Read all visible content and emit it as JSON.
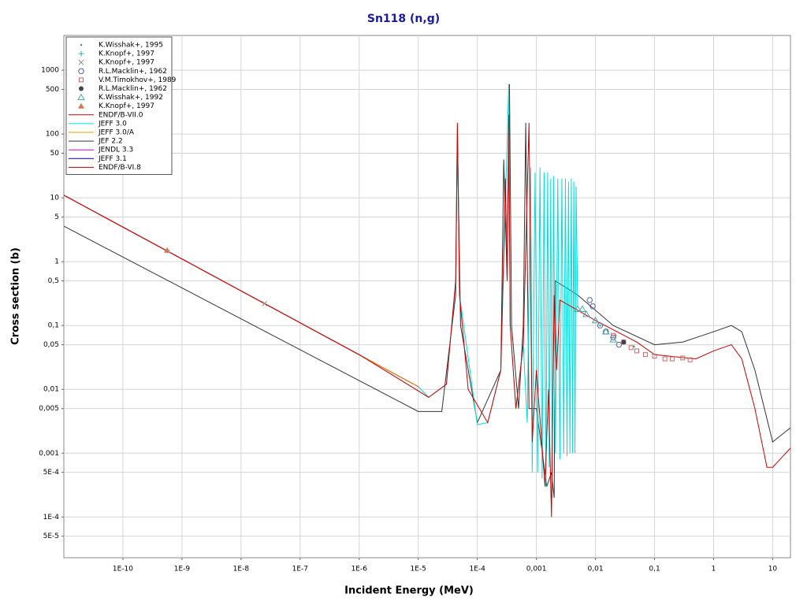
{
  "chart_data": {
    "type": "line",
    "title": "Sn118 (n,g)",
    "x_label": "Incident Energy (MeV)",
    "y_label": "Cross section (b)",
    "xscale": "log",
    "yscale": "log",
    "grid": true,
    "legend": "upper left",
    "xlim": [
      1e-11,
      20
    ],
    "ylim": [
      2.3e-05,
      3500
    ],
    "xticks": [
      {
        "value": 1e-10,
        "label": "1E-10"
      },
      {
        "value": 1e-09,
        "label": "1E-9"
      },
      {
        "value": 1e-08,
        "label": "1E-8"
      },
      {
        "value": 1e-07,
        "label": "1E-7"
      },
      {
        "value": 1e-06,
        "label": "1E-6"
      },
      {
        "value": 1e-05,
        "label": "1E-5"
      },
      {
        "value": 0.0001,
        "label": "1E-4"
      },
      {
        "value": 0.001,
        "label": "0,001"
      },
      {
        "value": 0.01,
        "label": "0,01"
      },
      {
        "value": 0.1,
        "label": "0,1"
      },
      1,
      10
    ],
    "yticks": [
      1000,
      500,
      100,
      50,
      10,
      5,
      1,
      {
        "value": 0.5,
        "label": "0,5"
      },
      {
        "value": 0.1,
        "label": "0,1"
      },
      {
        "value": 0.05,
        "label": "0,05"
      },
      {
        "value": 0.01,
        "label": "0,01"
      },
      {
        "value": 0.005,
        "label": "0,005"
      },
      {
        "value": 0.001,
        "label": "0,001"
      },
      {
        "value": 0.0005,
        "label": "5E-4"
      },
      {
        "value": 0.0001,
        "label": "1E-4"
      },
      {
        "value": 5e-05,
        "label": "5E-5"
      }
    ],
    "series": [
      {
        "name": "K.Wisshak+, 1995",
        "style": "scatter",
        "marker": "dot",
        "color": "#339988",
        "x": [
          0.012,
          0.016,
          0.022,
          0.03,
          0.045
        ],
        "values": [
          0.1,
          0.085,
          0.07,
          0.058,
          0.047
        ]
      },
      {
        "name": "K.Knopf+, 1997",
        "style": "scatter",
        "marker": "plus",
        "color": "#33aaaa",
        "x": [
          5.6e-10
        ],
        "values": [
          1.5
        ]
      },
      {
        "name": "K.Knopf+, 1997",
        "style": "scatter",
        "marker": "cross",
        "color": "#888888",
        "x": [
          2.5e-08
        ],
        "values": [
          0.22
        ]
      },
      {
        "name": "R.L.Macklin+, 1962",
        "style": "scatter",
        "marker": "hexagon",
        "color": "#5566aa",
        "x": [
          0.008,
          0.009,
          0.012,
          0.015,
          0.02,
          0.025
        ],
        "values": [
          0.25,
          0.2,
          0.1,
          0.08,
          0.065,
          0.05
        ]
      },
      {
        "name": "V.M.Timokhov+, 1989",
        "style": "scatter",
        "marker": "square",
        "color": "#cc6666",
        "x": [
          0.02,
          0.03,
          0.04,
          0.05,
          0.07,
          0.1,
          0.15,
          0.2,
          0.3,
          0.4
        ],
        "values": [
          0.07,
          0.055,
          0.045,
          0.04,
          0.035,
          0.033,
          0.03,
          0.03,
          0.031,
          0.029
        ]
      },
      {
        "name": "R.L.Macklin+, 1962",
        "style": "scatter",
        "marker": "filled-circle",
        "color": "#444444",
        "x": [
          0.03
        ],
        "values": [
          0.055
        ]
      },
      {
        "name": "K.Wisshak+, 1992",
        "style": "scatter",
        "marker": "triangle",
        "color": "#44aaaa",
        "x": [
          0.005,
          0.006,
          0.007,
          0.01,
          0.015,
          0.02
        ],
        "values": [
          0.18,
          0.18,
          0.15,
          0.12,
          0.08,
          0.06
        ]
      },
      {
        "name": "K.Knopf+, 1997",
        "style": "scatter",
        "marker": "filled-triangle",
        "color": "#d2785a",
        "x": [
          5.6e-10
        ],
        "values": [
          1.5
        ]
      },
      {
        "name": "ENDF/B-VII.0",
        "style": "line",
        "color": "#cc0000",
        "x": [
          1e-11,
          1e-06,
          1.5e-05,
          3e-05,
          4.3e-05,
          4.6e-05,
          5e-05,
          7e-05,
          0.00015,
          0.00025,
          0.0003,
          0.00032,
          0.00034,
          0.00036,
          0.00045,
          0.0006,
          0.00075,
          0.00085,
          0.001,
          0.0014,
          0.0016,
          0.0018,
          0.002,
          0.0022,
          0.0025,
          0.01,
          0.05,
          0.1,
          0.5,
          1,
          2,
          3,
          5,
          8,
          10,
          15,
          20
        ],
        "values": [
          11,
          0.035,
          0.0075,
          0.012,
          0.5,
          150,
          0.3,
          0.01,
          0.003,
          0.02,
          20,
          0.5,
          200,
          0.1,
          0.005,
          0.05,
          150,
          0.0015,
          0.02,
          0.0003,
          0.01,
          0.0001,
          0.3,
          0.02,
          0.25,
          0.12,
          0.055,
          0.035,
          0.03,
          0.04,
          0.05,
          0.03,
          0.005,
          0.0006,
          0.0006,
          0.0009,
          0.0012
        ]
      },
      {
        "name": "JEFF 3.0",
        "style": "line",
        "color": "#00dddd",
        "x": [
          1e-05,
          1.5e-05,
          3e-05,
          4.3e-05,
          4.6e-05,
          5e-05,
          0.0001,
          0.00015,
          0.00025,
          0.00034,
          0.00036,
          0.00045,
          0.0006,
          0.0007,
          0.0008,
          0.00085,
          0.00095,
          0.00105,
          0.00115,
          0.00125,
          0.00135,
          0.00145,
          0.00155,
          0.00165,
          0.00175,
          0.00185,
          0.00195,
          0.0021,
          0.0023,
          0.0025,
          0.0027,
          0.0029,
          0.0031,
          0.0033,
          0.0035,
          0.0037,
          0.0039,
          0.0041,
          0.0043,
          0.0045,
          0.0047,
          0.005
        ],
        "values": [
          0.011,
          0.0075,
          0.012,
          0.5,
          140,
          0.3,
          0.0028,
          0.003,
          0.02,
          600,
          0.1,
          0.005,
          0.05,
          0.003,
          30,
          0.0005,
          25,
          0.0005,
          30,
          0.0004,
          25,
          0.0003,
          25,
          0.0006,
          20,
          0.0002,
          22,
          0.001,
          20,
          0.0008,
          20,
          0.001,
          20,
          0.0009,
          18,
          0.001,
          20,
          0.001,
          18,
          0.001,
          15,
          0.2
        ]
      },
      {
        "name": "JEFF 3.0/A",
        "style": "line",
        "color": "#e0a000",
        "x": [
          1e-11,
          1e-05
        ],
        "values": [
          11,
          0.011
        ]
      },
      {
        "name": "JEF 2.2",
        "style": "line",
        "color": "#333333",
        "x": [
          1e-11,
          1e-05,
          2.5e-05,
          4.3e-05,
          4.6e-05,
          5.2e-05,
          0.0001,
          0.00025,
          0.00028,
          0.00032,
          0.00035,
          0.00038,
          0.0005,
          0.0006,
          0.00066,
          0.00075,
          0.001,
          0.0015,
          0.0018,
          0.002,
          0.0021,
          0.005,
          0.02,
          0.1,
          0.3,
          1,
          2,
          3,
          5,
          10,
          20
        ],
        "values": [
          3.6,
          0.0045,
          0.0045,
          0.3,
          100,
          0.1,
          0.003,
          0.02,
          40,
          0.5,
          600,
          0.1,
          0.005,
          0.1,
          150,
          0.005,
          0.005,
          0.0003,
          0.0005,
          0.0002,
          0.5,
          0.3,
          0.1,
          0.05,
          0.055,
          0.08,
          0.1,
          0.08,
          0.02,
          0.0015,
          0.0025
        ]
      },
      {
        "name": "JENDL 3.3",
        "style": "line",
        "color": "#d000d0",
        "x": [
          1e-11,
          1e-05
        ],
        "values": [
          11,
          0.011
        ]
      },
      {
        "name": "JEFF 3.1",
        "style": "line",
        "color": "#0000a0",
        "x": [
          1e-11,
          1e-05
        ],
        "values": [
          11,
          0.011
        ]
      },
      {
        "name": "ENDF/B-VI.8",
        "style": "line",
        "color": "#b00000",
        "x": [
          1e-11,
          1e-05
        ],
        "values": [
          11,
          0.011
        ]
      }
    ]
  }
}
